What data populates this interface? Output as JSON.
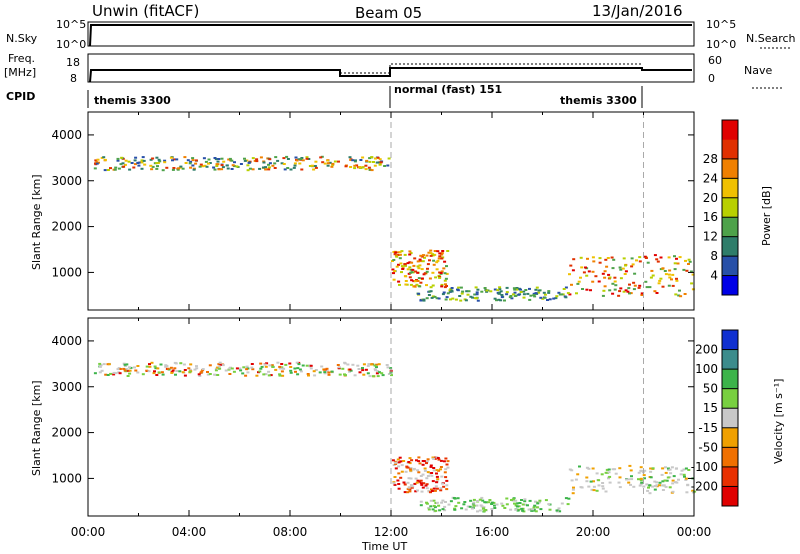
{
  "header": {
    "radar": "Unwin (fitACF)",
    "beam": "Beam 05",
    "date": "13/Jan/2016"
  },
  "side_labels": {
    "nsky": "N.Sky",
    "freq": "Freq.",
    "freq_unit": "[MHz]",
    "cpid": "CPID",
    "nsearch": "N.Search",
    "nave": "Nave"
  },
  "cpid_segments": [
    "themis 3300",
    "normal (fast) 151",
    "themis 3300"
  ],
  "strip_ticks": {
    "noise_left": [
      "10^5",
      "10^0"
    ],
    "noise_right": [
      "10^5",
      "10^0"
    ],
    "freq_left": [
      "18",
      "8"
    ],
    "freq_right": [
      "60",
      "0"
    ]
  },
  "x_axis": {
    "title": "Time UT",
    "ticks": [
      "00:00",
      "04:00",
      "08:00",
      "12:00",
      "16:00",
      "20:00",
      "00:00"
    ]
  },
  "chart_data": [
    {
      "type": "heatmap",
      "ylabel": "Slant Range [km]",
      "y_ticks": [
        "1000",
        "2000",
        "3000",
        "4000"
      ],
      "ylim": [
        180,
        4500
      ],
      "xlim": [
        0,
        24
      ],
      "colorbar": {
        "label": "Power [dB]",
        "ticks": [
          "4",
          "8",
          "12",
          "16",
          "20",
          "24",
          "28"
        ],
        "colors": [
          "#0000e6",
          "#2850a8",
          "#2f7d6a",
          "#4ea24a",
          "#b8d000",
          "#f0c000",
          "#f08000",
          "#e03000",
          "#e00000"
        ]
      },
      "scatter_regions": [
        {
          "x": [
            0.2,
            12.0
          ],
          "y": [
            3250,
            3550
          ],
          "level": "mixed"
        },
        {
          "x": [
            12.0,
            14.2
          ],
          "y": [
            700,
            1500
          ],
          "level": "high"
        },
        {
          "x": [
            19.0,
            24.0
          ],
          "y": [
            500,
            1400
          ],
          "level": "high"
        },
        {
          "x": [
            13.0,
            19.0
          ],
          "y": [
            400,
            700
          ],
          "level": "medium"
        }
      ]
    },
    {
      "type": "heatmap",
      "ylabel": "Slant Range [km]",
      "y_ticks": [
        "1000",
        "2000",
        "3000",
        "4000"
      ],
      "ylim": [
        180,
        4500
      ],
      "xlim": [
        0,
        24
      ],
      "colorbar": {
        "label": "Velocity [m s⁻¹]",
        "ticks": [
          "200",
          "100",
          "50",
          "15",
          "-15",
          "-50",
          "-100",
          "-200"
        ],
        "colors": [
          "#1030d0",
          "#3c8c8c",
          "#3cb44a",
          "#78d040",
          "#c8c8c8",
          "#f0a000",
          "#f07000",
          "#e83000",
          "#e00000"
        ]
      },
      "scatter_regions": [
        {
          "x": [
            0.2,
            12.0
          ],
          "y": [
            3250,
            3550
          ],
          "level": "mixed"
        },
        {
          "x": [
            12.0,
            14.2
          ],
          "y": [
            700,
            1500
          ],
          "level": "negative"
        },
        {
          "x": [
            19.0,
            24.0
          ],
          "y": [
            700,
            1300
          ],
          "level": "near-zero"
        },
        {
          "x": [
            13.0,
            19.0
          ],
          "y": [
            300,
            600
          ],
          "level": "positive"
        }
      ]
    }
  ]
}
